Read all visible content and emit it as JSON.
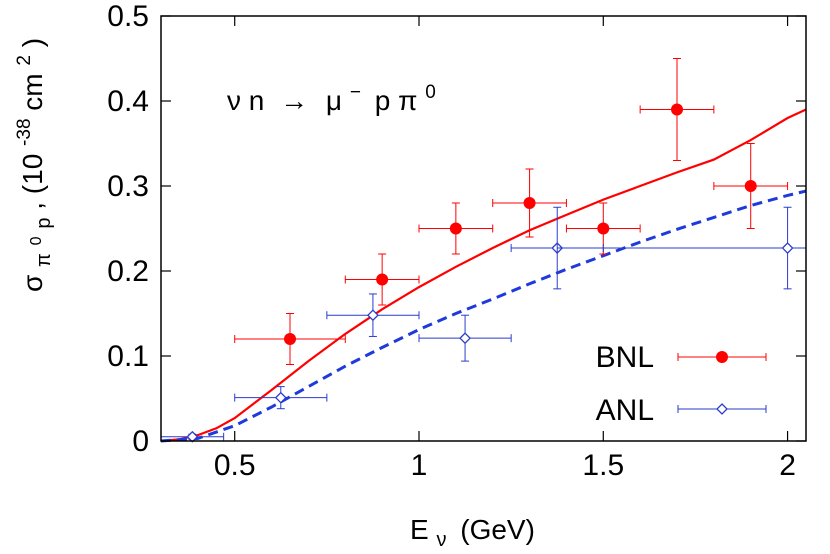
{
  "chart_data": {
    "type": "scatter",
    "xlabel": {
      "main": "E",
      "sub": "ν",
      "unit": "(GeV)"
    },
    "ylabel": {
      "main": "σ",
      "sub_a": "π",
      "sup_a": "0",
      "sub_b": "p",
      "after": ",  (10",
      "exp": "-38",
      "unit": " cm",
      "unit_exp": "2",
      "close": ")"
    },
    "annotation": {
      "lhs": "ν n",
      "arrow": "→",
      "mu": "μ",
      "mu_sup": "−",
      "rest": "p π",
      "pi_sup": "0"
    },
    "xlim": [
      0.3,
      2.05
    ],
    "ylim": [
      0,
      0.5
    ],
    "x_ticks": [
      0.5,
      1,
      1.5,
      2
    ],
    "x_tick_labels": [
      "0.5",
      "1",
      "1.5",
      "2"
    ],
    "y_ticks": [
      0,
      0.1,
      0.2,
      0.3,
      0.4,
      0.5
    ],
    "y_tick_labels": [
      "0",
      "0.1",
      "0.2",
      "0.3",
      "0.4",
      "0.5"
    ],
    "grid": false,
    "legend_position": "bottom-right",
    "series": [
      {
        "name": "BNL",
        "kind": "points",
        "marker": "filled-circle",
        "color": "#ff0000",
        "points": [
          {
            "x": 0.65,
            "y": 0.12,
            "xerr": 0.15,
            "yerr": 0.03
          },
          {
            "x": 0.9,
            "y": 0.19,
            "xerr": 0.1,
            "yerr": 0.03
          },
          {
            "x": 1.1,
            "y": 0.25,
            "xerr": 0.1,
            "yerr": 0.03
          },
          {
            "x": 1.3,
            "y": 0.28,
            "xerr": 0.1,
            "yerr": 0.04
          },
          {
            "x": 1.5,
            "y": 0.25,
            "xerr": 0.1,
            "yerr": 0.03
          },
          {
            "x": 1.7,
            "y": 0.39,
            "xerr": 0.1,
            "yerr": 0.06
          },
          {
            "x": 1.9,
            "y": 0.3,
            "xerr": 0.1,
            "yerr": 0.05
          }
        ]
      },
      {
        "name": "ANL",
        "kind": "points",
        "marker": "open-diamond",
        "color": "#2a3ccc",
        "points": [
          {
            "x": 0.385,
            "y": 0.005,
            "xerr": 0.085,
            "yerr": 0.003
          },
          {
            "x": 0.625,
            "y": 0.051,
            "xerr": 0.125,
            "yerr": 0.013
          },
          {
            "x": 0.875,
            "y": 0.148,
            "xerr": 0.125,
            "yerr": 0.025
          },
          {
            "x": 1.125,
            "y": 0.121,
            "xerr": 0.125,
            "yerr": 0.027
          },
          {
            "x": 1.375,
            "y": 0.227,
            "xerr": 0.125,
            "yerr": 0.048
          },
          {
            "x": 2.0,
            "y": 0.227,
            "xerr": 0.625,
            "yerr": 0.048
          }
        ]
      },
      {
        "kind": "line",
        "style": "solid",
        "color": "#ff0000",
        "points": [
          [
            0.3,
            0.0
          ],
          [
            0.35,
            0.002
          ],
          [
            0.4,
            0.007
          ],
          [
            0.45,
            0.015
          ],
          [
            0.5,
            0.027
          ],
          [
            0.6,
            0.06
          ],
          [
            0.7,
            0.094
          ],
          [
            0.8,
            0.126
          ],
          [
            0.9,
            0.155
          ],
          [
            1.0,
            0.181
          ],
          [
            1.1,
            0.205
          ],
          [
            1.2,
            0.227
          ],
          [
            1.3,
            0.248
          ],
          [
            1.4,
            0.266
          ],
          [
            1.5,
            0.284
          ],
          [
            1.6,
            0.3
          ],
          [
            1.7,
            0.316
          ],
          [
            1.8,
            0.331
          ],
          [
            1.9,
            0.354
          ],
          [
            2.0,
            0.38
          ],
          [
            2.05,
            0.39
          ]
        ]
      },
      {
        "kind": "line",
        "style": "dashed",
        "color": "#1e3adc",
        "points": [
          [
            0.3,
            0.0
          ],
          [
            0.4,
            0.003
          ],
          [
            0.5,
            0.018
          ],
          [
            0.6,
            0.04
          ],
          [
            0.7,
            0.064
          ],
          [
            0.8,
            0.088
          ],
          [
            0.9,
            0.11
          ],
          [
            1.0,
            0.131
          ],
          [
            1.1,
            0.15
          ],
          [
            1.2,
            0.167
          ],
          [
            1.3,
            0.185
          ],
          [
            1.4,
            0.202
          ],
          [
            1.5,
            0.218
          ],
          [
            1.6,
            0.234
          ],
          [
            1.7,
            0.249
          ],
          [
            1.8,
            0.263
          ],
          [
            1.9,
            0.277
          ],
          [
            2.0,
            0.289
          ],
          [
            2.05,
            0.294
          ]
        ]
      }
    ]
  }
}
